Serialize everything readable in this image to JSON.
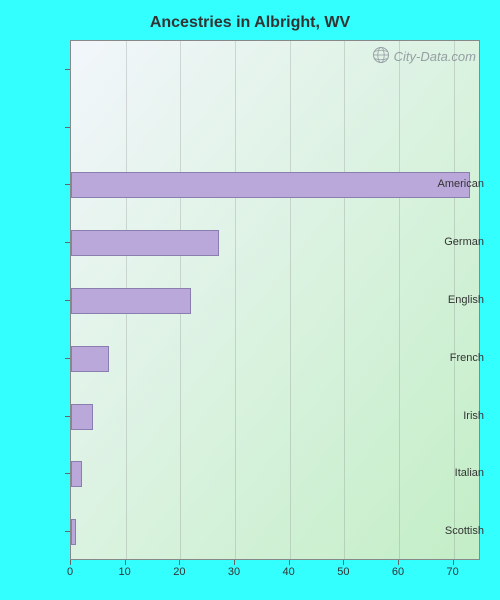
{
  "chart": {
    "type": "bar-horizontal",
    "title": "Ancestries in Albright, WV",
    "title_fontsize": 16,
    "title_color": "#333333",
    "outer_background": "#33ffff",
    "plot_gradient_from": "#f2f6fb",
    "plot_gradient_to": "#c3eec6",
    "bar_color": "#bba8da",
    "bar_border": "#8a7db0",
    "grid_color": "rgba(120,120,120,0.25)",
    "axis_color": "#888888",
    "label_color": "#333333",
    "label_fontsize": 11,
    "xlim": [
      0,
      75
    ],
    "xtick_step": 10,
    "xticks": [
      0,
      10,
      20,
      30,
      40,
      50,
      60,
      70
    ],
    "total_slots": 9,
    "bar_thickness_ratio": 0.45,
    "categories": [
      "American",
      "German",
      "English",
      "French",
      "Irish",
      "Italian",
      "Scottish"
    ],
    "values": [
      73,
      27,
      22,
      7,
      4,
      2,
      1
    ],
    "watermark_text": "City-Data.com",
    "watermark_color": "rgba(90,90,110,0.55)",
    "watermark_fontsize": 13
  }
}
